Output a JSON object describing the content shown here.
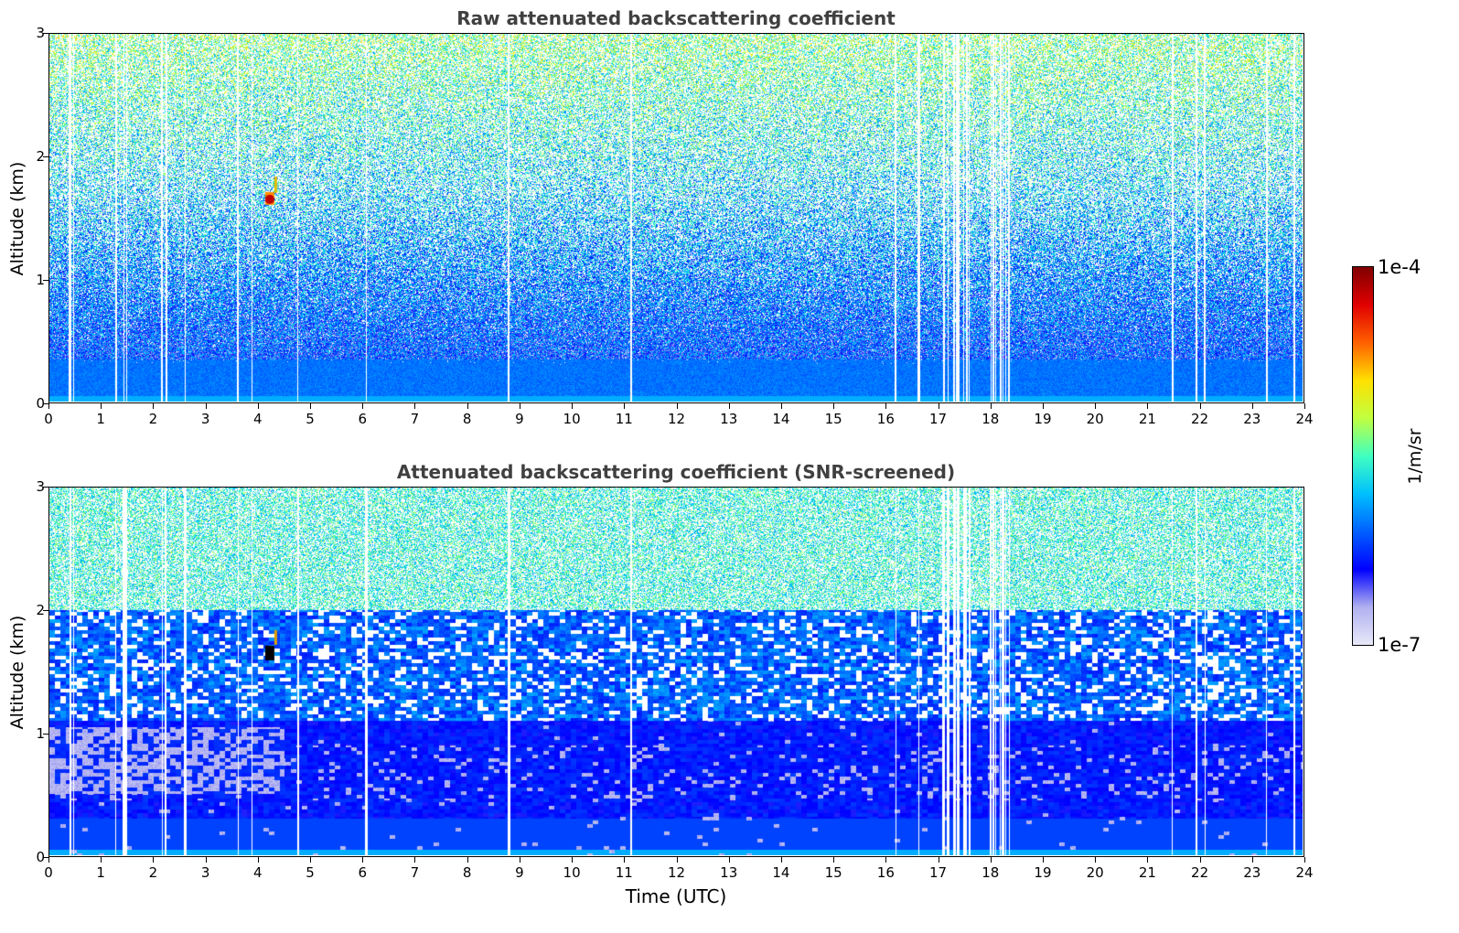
{
  "chart_data": [
    {
      "type": "heatmap",
      "title": "Raw attenuated backscattering coefficient",
      "xlabel": "",
      "ylabel": "Altitude (km)",
      "x_ticks": [
        "0",
        "1",
        "2",
        "3",
        "4",
        "5",
        "6",
        "7",
        "8",
        "9",
        "10",
        "11",
        "12",
        "13",
        "14",
        "15",
        "16",
        "17",
        "18",
        "19",
        "20",
        "21",
        "22",
        "23",
        "24"
      ],
      "y_ticks": [
        "0",
        "1",
        "2",
        "3"
      ],
      "xlim": [
        0,
        24
      ],
      "ylim": [
        0,
        3
      ],
      "missing_data_columns_hours": [
        0.38,
        0.45,
        1.27,
        1.42,
        1.47,
        2.15,
        2.22,
        2.6,
        3.6,
        3.88,
        4.75,
        6.07,
        8.8,
        11.12,
        16.2,
        16.65,
        17.12,
        17.2,
        17.32,
        17.38,
        17.42,
        17.5,
        17.55,
        17.6,
        18.02,
        18.08,
        18.12,
        18.2,
        18.25,
        18.3,
        18.38,
        21.5,
        21.95,
        22.12,
        23.3,
        23.85
      ],
      "features": [
        {
          "type": "strong-return",
          "time_hours": 4.22,
          "altitude_km": 1.65
        }
      ]
    },
    {
      "type": "heatmap",
      "title": "Attenuated backscattering coefficient (SNR-screened)",
      "xlabel": "Time (UTC)",
      "ylabel": "Altitude (km)",
      "x_ticks": [
        "0",
        "1",
        "2",
        "3",
        "4",
        "5",
        "6",
        "7",
        "8",
        "9",
        "10",
        "11",
        "12",
        "13",
        "14",
        "15",
        "16",
        "17",
        "18",
        "19",
        "20",
        "21",
        "22",
        "23",
        "24"
      ],
      "y_ticks": [
        "0",
        "1",
        "2",
        "3"
      ],
      "xlim": [
        0,
        24
      ],
      "ylim": [
        0,
        3
      ],
      "features": [
        {
          "type": "strong-return",
          "time_hours": 4.22,
          "altitude_km": 1.65
        }
      ]
    }
  ],
  "colorbar": {
    "min_label": "1e-7",
    "max_label": "1e-4",
    "label": "1/m/sr",
    "scale": "log",
    "colormap": [
      "#e8e8f8",
      "#b0b0f0",
      "#0000ff",
      "#0060ff",
      "#00c0ff",
      "#40ffc0",
      "#c0ff40",
      "#ffe000",
      "#ff6000",
      "#e00000",
      "#800000"
    ]
  }
}
